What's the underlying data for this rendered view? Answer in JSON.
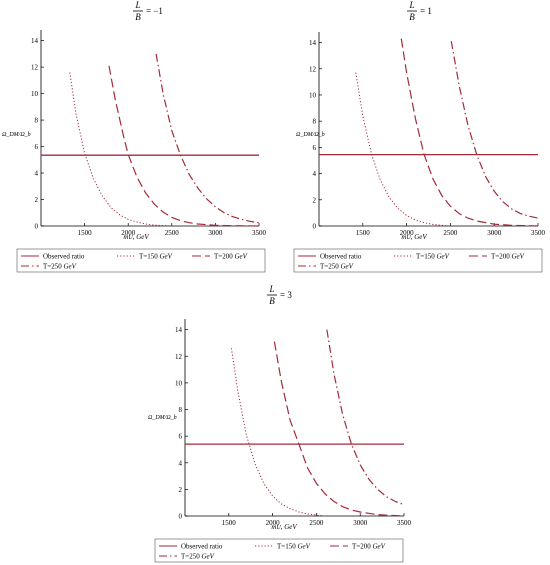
{
  "figure": {
    "ylabel": "Ω_DM/Ω_b",
    "xlabel_main": "m",
    "xlabel_sub": "U",
    "xlabel_unit": "GeV",
    "colors": {
      "curve": "#a52a3a",
      "axis": "#000000",
      "legend_border": "#555555"
    }
  },
  "chart_data": [
    {
      "type": "line",
      "title": {
        "numerator": "L",
        "denominator": "B",
        "rhs": "= −1"
      },
      "xlabel": "mU, GeV",
      "ylabel": "Ω_DM/Ω_b",
      "xlim": [
        1000,
        3500
      ],
      "ylim": [
        0,
        14.5
      ],
      "xticks": [
        1500,
        2000,
        2500,
        3000,
        3500
      ],
      "yticks": [
        0,
        2,
        4,
        6,
        8,
        10,
        12,
        14
      ],
      "grid": false,
      "legend_position": "bottom",
      "series": [
        {
          "name": "Observed ratio",
          "style": "solid",
          "x": [
            1000,
            3500
          ],
          "y": [
            5.35,
            5.35
          ]
        },
        {
          "name": "T=150 GeV",
          "style": "dotted",
          "x": [
            1330,
            1400,
            1500,
            1600,
            1700,
            1800,
            1900,
            2000,
            2100,
            2200,
            2300,
            2500
          ],
          "y": [
            11.6,
            8.5,
            5.5,
            3.6,
            2.3,
            1.4,
            0.85,
            0.5,
            0.3,
            0.15,
            0.07,
            0.0
          ]
        },
        {
          "name": "T=200 GeV",
          "style": "dashed",
          "x": [
            1780,
            1850,
            1950,
            2000,
            2100,
            2200,
            2300,
            2400,
            2500,
            2600,
            2700,
            2800,
            3000,
            3200,
            3500
          ],
          "y": [
            12.1,
            9.6,
            6.7,
            5.4,
            3.7,
            2.5,
            1.65,
            1.05,
            0.65,
            0.4,
            0.25,
            0.15,
            0.05,
            0.02,
            0.0
          ]
        },
        {
          "name": "T=250 GeV",
          "style": "dashdot",
          "x": [
            2320,
            2400,
            2500,
            2600,
            2700,
            2800,
            2900,
            3000,
            3100,
            3200,
            3300,
            3400,
            3500
          ],
          "y": [
            13.0,
            10.0,
            7.2,
            5.35,
            3.9,
            2.85,
            2.05,
            1.45,
            1.0,
            0.7,
            0.5,
            0.35,
            0.25
          ]
        }
      ]
    },
    {
      "type": "line",
      "title": {
        "numerator": "L",
        "denominator": "B",
        "rhs": "= 1"
      },
      "xlabel": "mU, GeV",
      "ylabel": "Ω_DM/Ω_b",
      "xlim": [
        1000,
        3500
      ],
      "ylim": [
        0,
        14.5
      ],
      "xticks": [
        1500,
        2000,
        2500,
        3000,
        3500
      ],
      "yticks": [
        0,
        2,
        4,
        6,
        8,
        10,
        12,
        14
      ],
      "grid": false,
      "legend_position": "bottom",
      "series": [
        {
          "name": "Observed ratio",
          "style": "solid",
          "x": [
            1000,
            3500
          ],
          "y": [
            5.45,
            5.45
          ]
        },
        {
          "name": "T=150 GeV",
          "style": "dotted",
          "x": [
            1420,
            1500,
            1600,
            1700,
            1800,
            1900,
            2000,
            2100,
            2200,
            2300,
            2400,
            2500
          ],
          "y": [
            11.7,
            8.4,
            5.45,
            3.5,
            2.2,
            1.35,
            0.8,
            0.45,
            0.25,
            0.12,
            0.05,
            0.0
          ]
        },
        {
          "name": "T=200 GeV",
          "style": "dashed",
          "x": [
            1940,
            2000,
            2100,
            2200,
            2300,
            2400,
            2500,
            2600,
            2700,
            2800,
            3000,
            3200,
            3500
          ],
          "y": [
            14.3,
            11.7,
            8.2,
            5.45,
            3.6,
            2.35,
            1.5,
            0.95,
            0.6,
            0.38,
            0.14,
            0.05,
            0.0
          ]
        },
        {
          "name": "T=250 GeV",
          "style": "dashdot",
          "x": [
            2510,
            2600,
            2700,
            2800,
            2900,
            3000,
            3100,
            3200,
            3300,
            3400,
            3500
          ],
          "y": [
            14.1,
            10.7,
            7.7,
            5.45,
            3.8,
            2.65,
            1.85,
            1.3,
            0.95,
            0.75,
            0.6
          ]
        }
      ]
    },
    {
      "type": "line",
      "title": {
        "numerator": "L",
        "denominator": "B",
        "rhs": "= 3"
      },
      "xlabel": "mU, GeV",
      "ylabel": "Ω_DM/Ω_b",
      "xlim": [
        1000,
        3500
      ],
      "ylim": [
        0,
        14.5
      ],
      "xticks": [
        1500,
        2000,
        2500,
        3000,
        3500
      ],
      "yticks": [
        0,
        2,
        4,
        6,
        8,
        10,
        12,
        14
      ],
      "grid": false,
      "legend_position": "bottom",
      "series": [
        {
          "name": "Observed ratio",
          "style": "solid",
          "x": [
            1000,
            3500
          ],
          "y": [
            5.4,
            5.4
          ]
        },
        {
          "name": "T=150 GeV",
          "style": "dotted",
          "x": [
            1530,
            1600,
            1700,
            1800,
            1900,
            2000,
            2100,
            2200,
            2300,
            2400,
            2600
          ],
          "y": [
            12.6,
            9.5,
            6.1,
            3.9,
            2.45,
            1.5,
            0.9,
            0.55,
            0.3,
            0.15,
            0.0
          ]
        },
        {
          "name": "T=200 GeV",
          "style": "dashed",
          "x": [
            2020,
            2100,
            2200,
            2300,
            2400,
            2500,
            2600,
            2700,
            2800,
            2900,
            3000,
            3200,
            3500
          ],
          "y": [
            13.1,
            10.1,
            7.2,
            5.4,
            3.6,
            2.45,
            1.65,
            1.1,
            0.7,
            0.45,
            0.3,
            0.1,
            0.0
          ]
        },
        {
          "name": "T=250 GeV",
          "style": "dashdot",
          "x": [
            2620,
            2700,
            2800,
            2900,
            3000,
            3100,
            3200,
            3300,
            3400,
            3500
          ],
          "y": [
            14.0,
            10.7,
            7.6,
            5.4,
            3.85,
            2.75,
            2.0,
            1.45,
            1.1,
            0.85
          ]
        }
      ]
    }
  ]
}
